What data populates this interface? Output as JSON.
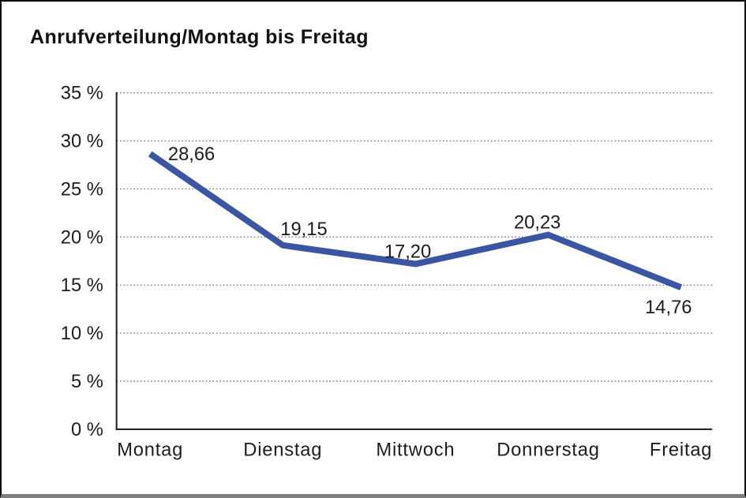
{
  "chart_data": {
    "type": "line",
    "title": "Anrufverteilung/Montag bis Freitag",
    "categories": [
      "Montag",
      "Dienstag",
      "Mittwoch",
      "Donnerstag",
      "Freitag"
    ],
    "series": [
      {
        "name": "Anrufverteilung",
        "values": [
          28.66,
          19.15,
          17.2,
          20.23,
          14.76
        ]
      }
    ],
    "point_labels": [
      "28,66",
      "19,15",
      "17,20",
      "20,23",
      "14,76"
    ],
    "y_ticks": [
      "0 %",
      "5 %",
      "10 %",
      "15 %",
      "20 %",
      "25 %",
      "30 %",
      "35 %"
    ],
    "ylim": [
      0,
      35
    ],
    "y_step": 5,
    "xlabel": "",
    "ylabel": "",
    "grid": "horizontal-dotted",
    "legend_position": "none",
    "line_color": "#3A56A3",
    "text_color": "#1c1c1c",
    "grid_color": "#777777",
    "axis_color": "#1a1a1a",
    "frame_bottom_color": "#7f7f7f"
  }
}
